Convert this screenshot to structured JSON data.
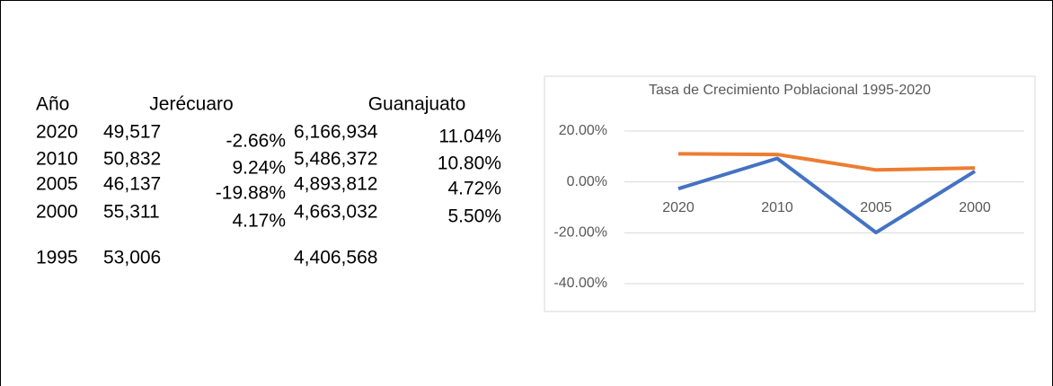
{
  "table": {
    "headers": [
      "Año",
      "Jerécuaro",
      "Guanajuato"
    ],
    "rows": [
      [
        "2020",
        "49,517",
        "-2.66%",
        "6,166,934",
        "11.04%"
      ],
      [
        "2010",
        "50,832",
        "9.24%",
        "5,486,372",
        "10.80%"
      ],
      [
        "2005",
        "46,137",
        "-19.88%",
        "4,893,812",
        "4.72%"
      ],
      [
        "2000",
        "55,311",
        "4.17%",
        "4,663,032",
        "5.50%"
      ],
      [
        "1995",
        "53,006",
        "",
        "4,406,568",
        ""
      ]
    ]
  },
  "chart_data": {
    "type": "line",
    "title": "Tasa de Crecimiento Poblacional 1995-2020",
    "categories": [
      "2020",
      "2010",
      "2005",
      "2000"
    ],
    "series": [
      {
        "color": "#4472c4",
        "values": [
          -2.66,
          9.24,
          -19.88,
          4.17
        ]
      },
      {
        "color": "#ed7d31",
        "values": [
          11.04,
          10.8,
          4.72,
          5.5
        ]
      }
    ],
    "ylim": [
      -40,
      20
    ],
    "yticks": [
      {
        "value": 20,
        "label": "20.00%"
      },
      {
        "value": 0,
        "label": "0.00%"
      },
      {
        "value": -20,
        "label": "-20.00%"
      },
      {
        "value": -40,
        "label": "-40.00%"
      }
    ],
    "grid": true
  }
}
